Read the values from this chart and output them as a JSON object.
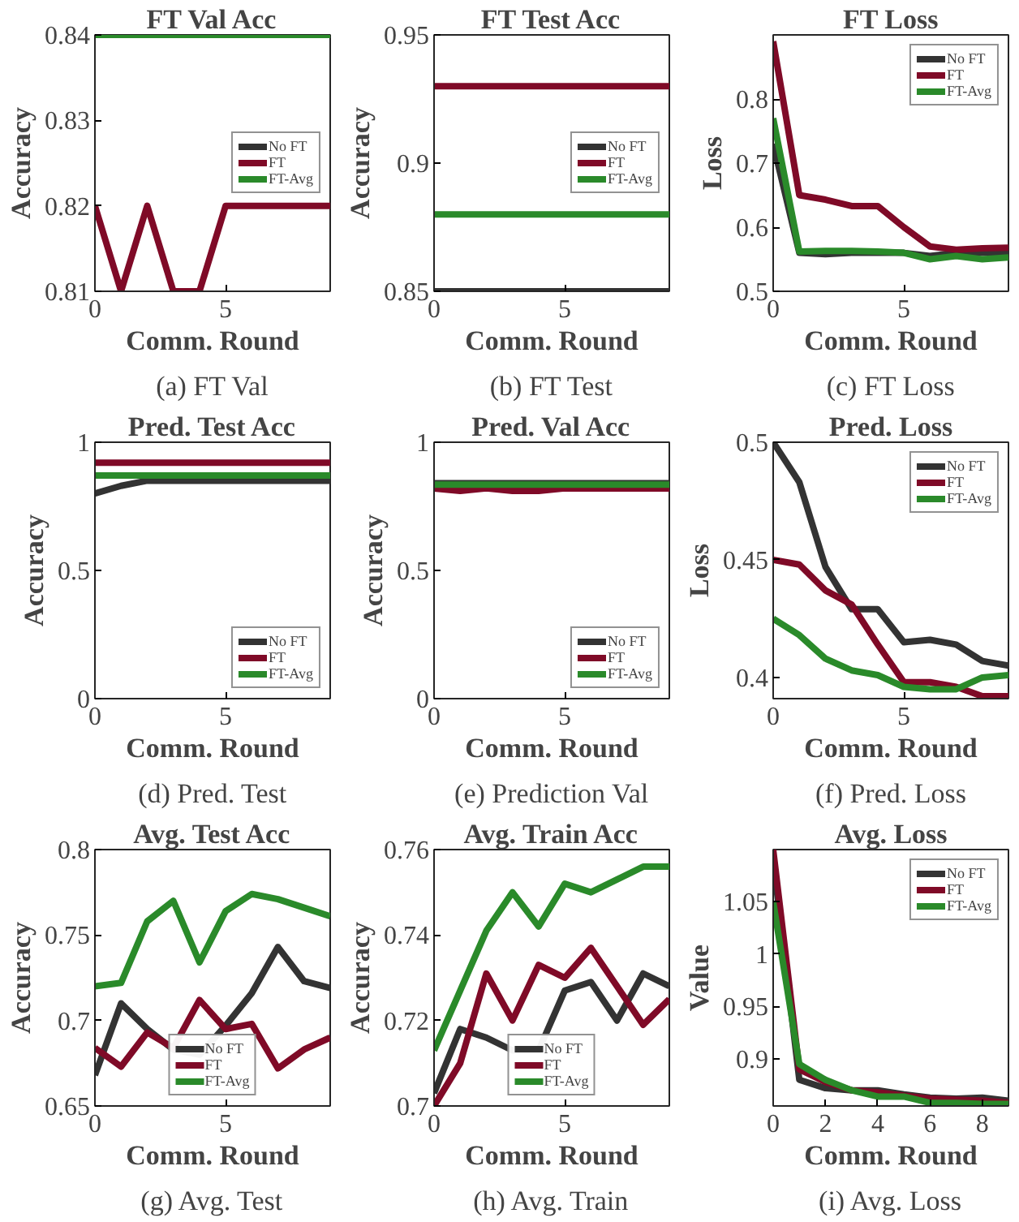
{
  "chart_data": [
    {
      "type": "line",
      "title": "FT Val Acc",
      "xlabel": "Comm. Round",
      "ylabel": "Accuracy",
      "x": [
        0,
        1,
        2,
        3,
        4,
        5,
        6,
        7,
        8,
        9
      ],
      "xlim": [
        0,
        9
      ],
      "xticks": [
        0,
        5
      ],
      "ylim": [
        0.81,
        0.84
      ],
      "yticks": [
        0.81,
        0.82,
        0.83,
        0.84
      ],
      "legend": "right",
      "annotations": [
        "(a) FT Val"
      ],
      "series": [
        {
          "name": "No FT",
          "color": "#333333",
          "values": [
            null,
            null,
            null,
            null,
            null,
            null,
            null,
            null,
            null,
            null
          ]
        },
        {
          "name": "FT",
          "color": "#7f0a27",
          "values": [
            0.82,
            0.81,
            0.82,
            0.81,
            0.81,
            0.82,
            0.82,
            0.82,
            0.82,
            0.82
          ]
        },
        {
          "name": "FT-Avg",
          "color": "#2a8a2a",
          "values": [
            0.84,
            0.84,
            0.84,
            0.84,
            0.84,
            0.84,
            0.84,
            0.84,
            0.84,
            0.84
          ]
        }
      ]
    },
    {
      "type": "line",
      "title": "FT Test Acc",
      "xlabel": "Comm. Round",
      "ylabel": "Accuracy",
      "x": [
        0,
        1,
        2,
        3,
        4,
        5,
        6,
        7,
        8,
        9
      ],
      "xlim": [
        0,
        9
      ],
      "xticks": [
        0,
        5
      ],
      "ylim": [
        0.85,
        0.95
      ],
      "yticks": [
        0.85,
        0.9,
        0.95
      ],
      "legend": "right",
      "annotations": [
        "(b) FT Test"
      ],
      "series": [
        {
          "name": "No FT",
          "color": "#333333",
          "values": [
            0.85,
            0.85,
            0.85,
            0.85,
            0.85,
            0.85,
            0.85,
            0.85,
            0.85,
            0.85
          ]
        },
        {
          "name": "FT",
          "color": "#7f0a27",
          "values": [
            0.93,
            0.93,
            0.93,
            0.93,
            0.93,
            0.93,
            0.93,
            0.93,
            0.93,
            0.93
          ]
        },
        {
          "name": "FT-Avg",
          "color": "#2a8a2a",
          "values": [
            0.88,
            0.88,
            0.88,
            0.88,
            0.88,
            0.88,
            0.88,
            0.88,
            0.88,
            0.88
          ]
        }
      ]
    },
    {
      "type": "line",
      "title": "FT Loss",
      "xlabel": "Comm. Round",
      "ylabel": "Loss",
      "x": [
        0,
        1,
        2,
        3,
        4,
        5,
        6,
        7,
        8,
        9
      ],
      "xlim": [
        0,
        9
      ],
      "xticks": [
        0,
        5
      ],
      "ylim": [
        0.5,
        0.9
      ],
      "yticks": [
        0.5,
        0.6,
        0.7,
        0.8
      ],
      "legend": "top right",
      "annotations": [
        "(c) FT Loss"
      ],
      "series": [
        {
          "name": "No FT",
          "color": "#333333",
          "values": [
            0.73,
            0.56,
            0.558,
            0.56,
            0.56,
            0.56,
            0.555,
            0.56,
            0.56,
            0.56
          ]
        },
        {
          "name": "FT",
          "color": "#7f0a27",
          "values": [
            0.89,
            0.65,
            0.643,
            0.633,
            0.633,
            0.6,
            0.57,
            0.565,
            0.567,
            0.568
          ]
        },
        {
          "name": "FT-Avg",
          "color": "#2a8a2a",
          "values": [
            0.77,
            0.562,
            0.563,
            0.563,
            0.562,
            0.56,
            0.55,
            0.555,
            0.55,
            0.553
          ]
        }
      ]
    },
    {
      "type": "line",
      "title": "Pred. Test Acc",
      "xlabel": "Comm. Round",
      "ylabel": "Accuracy",
      "x": [
        0,
        1,
        2,
        3,
        4,
        5,
        6,
        7,
        8,
        9
      ],
      "xlim": [
        0,
        9
      ],
      "xticks": [
        0,
        5
      ],
      "ylim": [
        0,
        1
      ],
      "yticks": [
        0,
        0.5,
        1
      ],
      "legend": "bottom right",
      "annotations": [
        "(d) Pred. Test"
      ],
      "series": [
        {
          "name": "No FT",
          "color": "#333333",
          "values": [
            0.8,
            0.83,
            0.85,
            0.85,
            0.85,
            0.85,
            0.85,
            0.85,
            0.85,
            0.85
          ]
        },
        {
          "name": "FT",
          "color": "#7f0a27",
          "values": [
            0.92,
            0.92,
            0.92,
            0.92,
            0.92,
            0.92,
            0.92,
            0.92,
            0.92,
            0.92
          ]
        },
        {
          "name": "FT-Avg",
          "color": "#2a8a2a",
          "values": [
            0.87,
            0.87,
            0.87,
            0.87,
            0.87,
            0.87,
            0.87,
            0.87,
            0.87,
            0.87
          ]
        }
      ]
    },
    {
      "type": "line",
      "title": "Pred. Val Acc",
      "xlabel": "Comm. Round",
      "ylabel": "Accuracy",
      "x": [
        0,
        1,
        2,
        3,
        4,
        5,
        6,
        7,
        8,
        9
      ],
      "xlim": [
        0,
        9
      ],
      "xticks": [
        0,
        5
      ],
      "ylim": [
        0,
        1
      ],
      "yticks": [
        0,
        0.5,
        1
      ],
      "legend": "bottom right",
      "annotations": [
        "(e) Prediction Val"
      ],
      "series": [
        {
          "name": "No FT",
          "color": "#333333",
          "values": [
            0.84,
            0.84,
            0.84,
            0.84,
            0.84,
            0.84,
            0.84,
            0.84,
            0.84,
            0.84
          ]
        },
        {
          "name": "FT",
          "color": "#7f0a27",
          "values": [
            0.82,
            0.81,
            0.82,
            0.81,
            0.81,
            0.82,
            0.82,
            0.82,
            0.82,
            0.82
          ]
        },
        {
          "name": "FT-Avg",
          "color": "#2a8a2a",
          "values": [
            0.835,
            0.835,
            0.835,
            0.835,
            0.835,
            0.835,
            0.835,
            0.835,
            0.835,
            0.835
          ]
        }
      ]
    },
    {
      "type": "line",
      "title": "Pred. Loss",
      "xlabel": "Comm. Round",
      "ylabel": "Loss",
      "x": [
        0,
        1,
        2,
        3,
        4,
        5,
        6,
        7,
        8,
        9
      ],
      "xlim": [
        0,
        9
      ],
      "xticks": [
        0,
        5
      ],
      "ylim": [
        0.391,
        0.5
      ],
      "yticks": [
        0.4,
        0.45,
        0.5
      ],
      "legend": "top right",
      "annotations": [
        "(f) Pred. Loss"
      ],
      "series": [
        {
          "name": "No FT",
          "color": "#333333",
          "values": [
            0.5,
            0.483,
            0.447,
            0.429,
            0.429,
            0.415,
            0.416,
            0.414,
            0.407,
            0.405
          ]
        },
        {
          "name": "FT",
          "color": "#7f0a27",
          "values": [
            0.45,
            0.448,
            0.437,
            0.431,
            0.414,
            0.398,
            0.398,
            0.396,
            0.392,
            0.392
          ]
        },
        {
          "name": "FT-Avg",
          "color": "#2a8a2a",
          "values": [
            0.425,
            0.418,
            0.408,
            0.403,
            0.401,
            0.396,
            0.395,
            0.395,
            0.4,
            0.401
          ]
        }
      ]
    },
    {
      "type": "line",
      "title": "Avg. Test Acc",
      "xlabel": "Comm. Round",
      "ylabel": "Accuracy",
      "x": [
        0,
        1,
        2,
        3,
        4,
        5,
        6,
        7,
        8,
        9
      ],
      "xlim": [
        0,
        9
      ],
      "xticks": [
        0,
        5
      ],
      "ylim": [
        0.65,
        0.8
      ],
      "yticks": [
        0.65,
        0.7,
        0.75,
        0.8
      ],
      "legend": "bottom",
      "annotations": [
        "(g) Avg. Test"
      ],
      "series": [
        {
          "name": "No FT",
          "color": "#333333",
          "values": [
            0.668,
            0.71,
            0.695,
            0.683,
            0.68,
            0.697,
            0.716,
            0.743,
            0.723,
            0.719
          ]
        },
        {
          "name": "FT",
          "color": "#7f0a27",
          "values": [
            0.684,
            0.673,
            0.693,
            0.684,
            0.712,
            0.695,
            0.698,
            0.672,
            0.683,
            0.69
          ]
        },
        {
          "name": "FT-Avg",
          "color": "#2a8a2a",
          "values": [
            0.72,
            0.722,
            0.758,
            0.77,
            0.734,
            0.764,
            0.774,
            0.771,
            0.766,
            0.761
          ]
        }
      ]
    },
    {
      "type": "line",
      "title": "Avg. Train Acc",
      "xlabel": "Comm. Round",
      "ylabel": "Accuracy",
      "x": [
        0,
        1,
        2,
        3,
        4,
        5,
        6,
        7,
        8,
        9
      ],
      "xlim": [
        0,
        9
      ],
      "xticks": [
        0,
        5
      ],
      "ylim": [
        0.7,
        0.76
      ],
      "yticks": [
        0.7,
        0.72,
        0.74,
        0.76
      ],
      "legend": "bottom",
      "annotations": [
        "(h) Avg. Train"
      ],
      "series": [
        {
          "name": "No FT",
          "color": "#333333",
          "values": [
            0.703,
            0.718,
            0.716,
            0.713,
            0.713,
            0.727,
            0.729,
            0.72,
            0.731,
            0.728
          ]
        },
        {
          "name": "FT",
          "color": "#7f0a27",
          "values": [
            0.7,
            0.71,
            0.731,
            0.72,
            0.733,
            0.73,
            0.737,
            0.728,
            0.719,
            0.725
          ]
        },
        {
          "name": "FT-Avg",
          "color": "#2a8a2a",
          "values": [
            0.713,
            0.727,
            0.741,
            0.75,
            0.742,
            0.752,
            0.75,
            0.753,
            0.756,
            0.756
          ]
        }
      ]
    },
    {
      "type": "line",
      "title": "Avg. Loss",
      "xlabel": "Comm. Round",
      "ylabel": "Value",
      "x": [
        0,
        1,
        2,
        3,
        4,
        5,
        6,
        7,
        8,
        9
      ],
      "xlim": [
        0,
        9
      ],
      "xticks": [
        0,
        2,
        4,
        6,
        8
      ],
      "ylim": [
        0.855,
        1.1
      ],
      "yticks": [
        0.9,
        0.95,
        1,
        1.05
      ],
      "legend": "top right",
      "annotations": [
        "(i) Avg. Loss"
      ],
      "series": [
        {
          "name": "No FT",
          "color": "#333333",
          "values": [
            1.09,
            0.88,
            0.872,
            0.87,
            0.87,
            0.866,
            0.863,
            0.862,
            0.863,
            0.86
          ]
        },
        {
          "name": "FT",
          "color": "#7f0a27",
          "values": [
            1.1,
            0.89,
            0.878,
            0.87,
            0.868,
            0.865,
            0.862,
            0.861,
            0.86,
            0.858
          ]
        },
        {
          "name": "FT-Avg",
          "color": "#2a8a2a",
          "values": [
            1.05,
            0.895,
            0.88,
            0.87,
            0.864,
            0.864,
            0.858,
            0.858,
            0.857,
            0.857
          ]
        }
      ]
    }
  ]
}
